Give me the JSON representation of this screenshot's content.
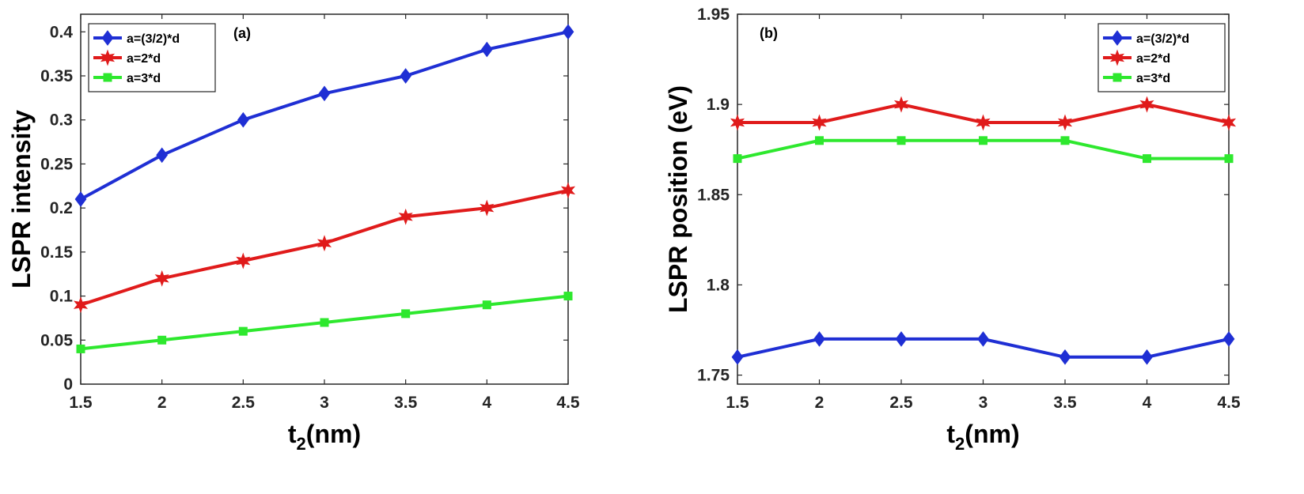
{
  "chart_data": [
    {
      "type": "line",
      "panel_label": "(a)",
      "xlabel": "t",
      "xlabel_subscript": "2",
      "xlabel_unit": "(nm)",
      "ylabel": "LSPR intensity",
      "x": [
        1.5,
        2,
        2.5,
        3,
        3.5,
        4,
        4.5
      ],
      "xticks": [
        "1.5",
        "2",
        "2.5",
        "3",
        "3.5",
        "4",
        "4.5"
      ],
      "yticks": [
        "0",
        "0.05",
        "0.1",
        "0.15",
        "0.2",
        "0.25",
        "0.3",
        "0.35",
        "0.4"
      ],
      "xlim": [
        1.5,
        4.5
      ],
      "ylim": [
        0,
        0.42
      ],
      "grid": false,
      "legend": "top-left",
      "series": [
        {
          "name": "a=(3/2)*d",
          "values": [
            0.21,
            0.26,
            0.3,
            0.33,
            0.35,
            0.38,
            0.4
          ],
          "color": "#1f2fd4",
          "marker": "diamond"
        },
        {
          "name": "a=2*d",
          "values": [
            0.09,
            0.12,
            0.14,
            0.16,
            0.19,
            0.2,
            0.22
          ],
          "color": "#e01b1b",
          "marker": "star"
        },
        {
          "name": "a=3*d",
          "values": [
            0.04,
            0.05,
            0.06,
            0.07,
            0.08,
            0.09,
            0.1
          ],
          "color": "#2ee82e",
          "marker": "square"
        }
      ]
    },
    {
      "type": "line",
      "panel_label": "(b)",
      "xlabel": "t",
      "xlabel_subscript": "2",
      "xlabel_unit": "(nm)",
      "ylabel": "LSPR position (eV)",
      "x": [
        1.5,
        2,
        2.5,
        3,
        3.5,
        4,
        4.5
      ],
      "xticks": [
        "1.5",
        "2",
        "2.5",
        "3",
        "3.5",
        "4",
        "4.5"
      ],
      "yticks": [
        "1.75",
        "1.8",
        "1.85",
        "1.9",
        "1.95"
      ],
      "xlim": [
        1.5,
        4.5
      ],
      "ylim": [
        1.745,
        1.95
      ],
      "grid": false,
      "legend": "top-right",
      "series": [
        {
          "name": "a=(3/2)*d",
          "values": [
            1.76,
            1.77,
            1.77,
            1.77,
            1.76,
            1.76,
            1.77
          ],
          "color": "#1f2fd4",
          "marker": "diamond"
        },
        {
          "name": "a=2*d",
          "values": [
            1.89,
            1.89,
            1.9,
            1.89,
            1.89,
            1.9,
            1.89
          ],
          "color": "#e01b1b",
          "marker": "star"
        },
        {
          "name": "a=3*d",
          "values": [
            1.87,
            1.88,
            1.88,
            1.88,
            1.88,
            1.87,
            1.87
          ],
          "color": "#2ee82e",
          "marker": "square"
        }
      ]
    }
  ]
}
